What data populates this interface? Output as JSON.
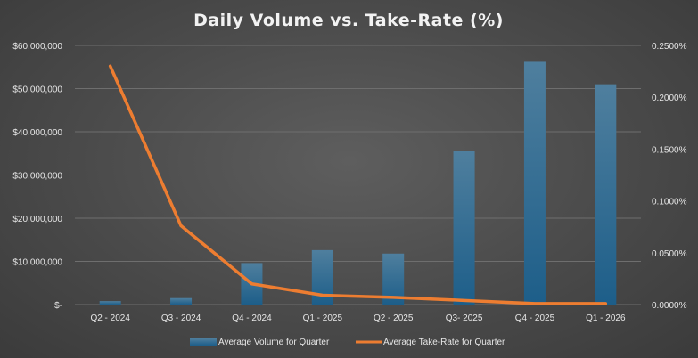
{
  "chart_data": {
    "type": "bar+line",
    "title": "Daily Volume vs. Take-Rate (%)",
    "categories": [
      "Q2 - 2024",
      "Q3 - 2024",
      "Q4 - 2024",
      "Q1 - 2025",
      "Q2 - 2025",
      "Q3- 2025",
      "Q4 - 2025",
      "Q1 - 2026"
    ],
    "series": [
      {
        "name": "Average Volume for Quarter",
        "kind": "bar",
        "axis": "left",
        "values": [
          800000,
          1500000,
          9600000,
          12600000,
          11800000,
          35500000,
          56200000,
          51000000
        ]
      },
      {
        "name": "Average Take-Rate for Quarter",
        "kind": "line",
        "axis": "right",
        "values": [
          0.23,
          0.076,
          0.02,
          0.009,
          0.007,
          0.004,
          0.001,
          0.001
        ]
      }
    ],
    "y_left": {
      "ylim": [
        0,
        60000000
      ],
      "ticks": [
        0,
        10000000,
        20000000,
        30000000,
        40000000,
        50000000,
        60000000
      ],
      "tick_labels": [
        "$-",
        "$10,000,000",
        "$20,000,000",
        "$30,000,000",
        "$40,000,000",
        "$50,000,000",
        "$60,000,000"
      ]
    },
    "y_right": {
      "ylim": [
        0,
        0.25
      ],
      "ticks": [
        0,
        0.05,
        0.1,
        0.15,
        0.2,
        0.25
      ],
      "tick_labels": [
        "0.0000%",
        "0.0500%",
        "0.1000%",
        "0.1500%",
        "0.2000%",
        "0.2500%"
      ]
    },
    "grid": true,
    "legend_position": "bottom",
    "colors": {
      "bar_top": "#4f7f9e",
      "bar_bottom": "#1f5f88",
      "line": "#ed7d31",
      "background": "#4a4a4a",
      "text": "#e6e6e6",
      "grid": "#6e6e6e"
    }
  }
}
